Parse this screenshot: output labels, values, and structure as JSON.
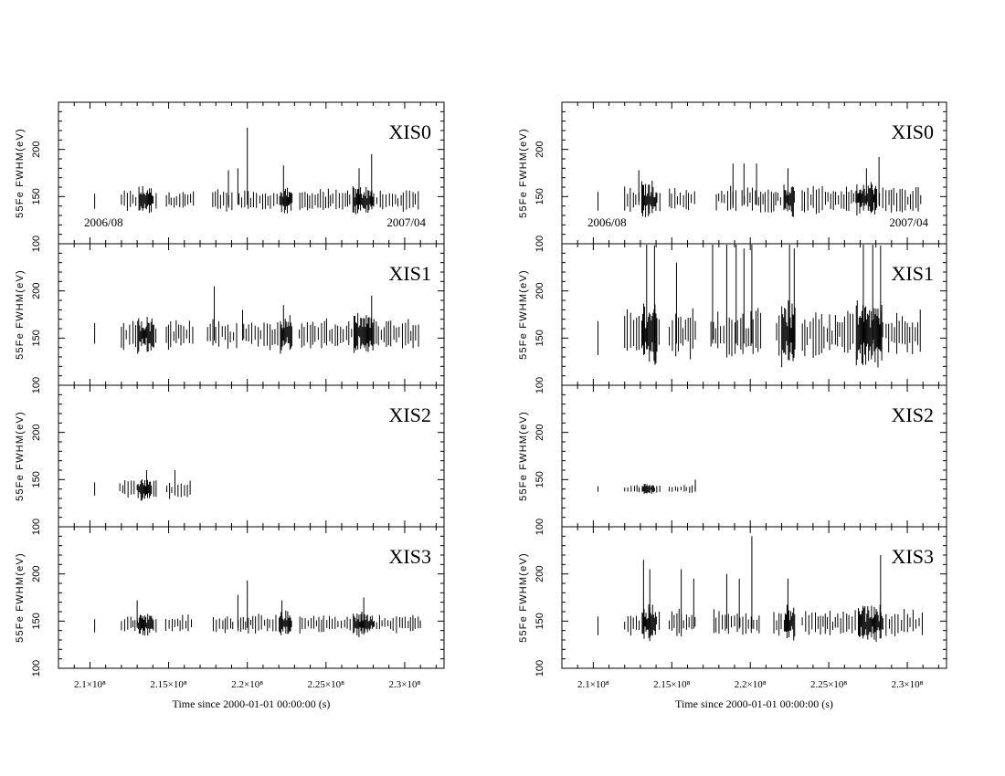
{
  "chart_data": [
    {
      "type": "scatter",
      "column": "left",
      "xlabel": "Time since 2000-01-01 00:00:00 (s)",
      "xlim": [
        208000000,
        232500000
      ],
      "x_ticks": [
        "2.1×10⁸",
        "2.15×10⁸",
        "2.2×10⁸",
        "2.25×10⁸",
        "2.3×10⁸"
      ],
      "ylabel": "55Fe FWHM(eV)",
      "ylim": [
        100,
        250
      ],
      "y_ticks": [
        100,
        150,
        200
      ],
      "date_annotations": [
        "2006/08",
        "2007/04"
      ],
      "panels": [
        {
          "label": "XIS0",
          "baseline": 146,
          "start": 212000000,
          "end": 231000000,
          "spread": 8,
          "isolated": [
            {
              "x": 210300000,
              "y": 145
            }
          ],
          "gaps": [
            [
              214300000,
              214800000
            ],
            [
              216600000,
              217800000
            ],
            [
              219100000,
              219400000
            ],
            [
              222900000,
              223300000
            ]
          ],
          "spikes": [
            {
              "x": 218800000,
              "y": 178
            },
            {
              "x": 219400000,
              "y": 180
            },
            {
              "x": 220000000,
              "y": 223
            },
            {
              "x": 222300000,
              "y": 183
            },
            {
              "x": 227100000,
              "y": 180
            },
            {
              "x": 227900000,
              "y": 195
            }
          ],
          "dense": [
            [
              213000000,
              214000000
            ],
            [
              222000000,
              222800000
            ],
            [
              226700000,
              228000000
            ]
          ]
        },
        {
          "label": "XIS1",
          "baseline": 154,
          "start": 212000000,
          "end": 231000000,
          "spread": 11,
          "isolated": [
            {
              "x": 210300000,
              "y": 155
            }
          ],
          "gaps": [
            [
              214300000,
              214800000
            ],
            [
              216600000,
              217400000
            ],
            [
              219400000,
              219700000
            ],
            [
              222900000,
              223300000
            ]
          ],
          "spikes": [
            {
              "x": 217900000,
              "y": 205
            },
            {
              "x": 219700000,
              "y": 180
            },
            {
              "x": 222300000,
              "y": 185
            },
            {
              "x": 227900000,
              "y": 195
            }
          ],
          "dense": [
            [
              213000000,
              214000000
            ],
            [
              222000000,
              222800000
            ],
            [
              226700000,
              228000000
            ]
          ]
        },
        {
          "label": "XIS2",
          "baseline": 140,
          "start": 211900000,
          "end": 216500000,
          "spread": 7,
          "isolated": [
            {
              "x": 210300000,
              "y": 140
            }
          ],
          "gaps": [
            [
              214300000,
              214800000
            ]
          ],
          "spikes": [
            {
              "x": 213600000,
              "y": 160
            },
            {
              "x": 215400000,
              "y": 160
            }
          ],
          "dense": [
            [
              213000000,
              213900000
            ]
          ]
        },
        {
          "label": "XIS3",
          "baseline": 147,
          "start": 212000000,
          "end": 231000000,
          "spread": 7,
          "isolated": [
            {
              "x": 210300000,
              "y": 145
            }
          ],
          "gaps": [
            [
              214300000,
              214800000
            ],
            [
              216600000,
              217800000
            ],
            [
              219100000,
              219400000
            ],
            [
              222900000,
              223300000
            ]
          ],
          "spikes": [
            {
              "x": 213000000,
              "y": 172
            },
            {
              "x": 219400000,
              "y": 178
            },
            {
              "x": 220000000,
              "y": 193
            },
            {
              "x": 222200000,
              "y": 172
            },
            {
              "x": 227400000,
              "y": 175
            }
          ],
          "dense": [
            [
              213000000,
              214000000
            ],
            [
              222000000,
              222800000
            ],
            [
              226700000,
              228000000
            ]
          ]
        }
      ]
    },
    {
      "type": "scatter",
      "column": "right",
      "xlabel": "Time since 2000-01-01 00:00:00 (s)",
      "xlim": [
        208000000,
        232500000
      ],
      "x_ticks": [
        "2.1×10⁸",
        "2.15×10⁸",
        "2.2×10⁸",
        "2.25×10⁸",
        "2.3×10⁸"
      ],
      "ylabel": "55Fe FWHM(eV)",
      "ylim": [
        100,
        250
      ],
      "y_ticks": [
        100,
        150,
        200
      ],
      "date_annotations": [
        "2006/08",
        "2007/04"
      ],
      "panels": [
        {
          "label": "XIS0",
          "baseline": 147,
          "start": 212000000,
          "end": 231000000,
          "spread": 10,
          "isolated": [
            {
              "x": 210300000,
              "y": 145
            }
          ],
          "gaps": [
            [
              214300000,
              214800000
            ],
            [
              216600000,
              217800000
            ],
            [
              219100000,
              219400000
            ],
            [
              222900000,
              223300000
            ]
          ],
          "spikes": [
            {
              "x": 212900000,
              "y": 178
            },
            {
              "x": 218900000,
              "y": 185
            },
            {
              "x": 219600000,
              "y": 185
            },
            {
              "x": 220400000,
              "y": 185
            },
            {
              "x": 222400000,
              "y": 180
            },
            {
              "x": 227400000,
              "y": 180
            },
            {
              "x": 228200000,
              "y": 192
            }
          ],
          "dense": [
            [
              213000000,
              214000000
            ],
            [
              222000000,
              222800000
            ],
            [
              226700000,
              228000000
            ]
          ]
        },
        {
          "label": "XIS1",
          "baseline": 155,
          "start": 212000000,
          "end": 231000000,
          "spread": 18,
          "isolated": [
            {
              "x": 210300000,
              "y": 150
            }
          ],
          "gaps": [
            [
              214300000,
              214800000
            ],
            [
              216600000,
              217400000
            ],
            [
              220700000,
              221600000
            ],
            [
              222900000,
              223300000
            ]
          ],
          "spikes": [
            {
              "x": 213400000,
              "y": 250
            },
            {
              "x": 213900000,
              "y": 248
            },
            {
              "x": 215300000,
              "y": 230
            },
            {
              "x": 217600000,
              "y": 250
            },
            {
              "x": 218500000,
              "y": 250
            },
            {
              "x": 219100000,
              "y": 250
            },
            {
              "x": 219600000,
              "y": 245
            },
            {
              "x": 220100000,
              "y": 250
            },
            {
              "x": 222500000,
              "y": 250
            },
            {
              "x": 222800000,
              "y": 245
            },
            {
              "x": 227200000,
              "y": 250
            },
            {
              "x": 227800000,
              "y": 250
            },
            {
              "x": 228300000,
              "y": 248
            }
          ],
          "dense": [
            [
              213000000,
              214000000
            ],
            [
              222000000,
              222800000
            ],
            [
              226700000,
              228400000
            ]
          ]
        },
        {
          "label": "XIS2",
          "baseline": 140,
          "start": 212000000,
          "end": 216500000,
          "spread": 3,
          "isolated": [
            {
              "x": 210300000,
              "y": 140
            }
          ],
          "gaps": [
            [
              214300000,
              214800000
            ]
          ],
          "spikes": [
            {
              "x": 216500000,
              "y": 150
            }
          ],
          "dense": [
            [
              213000000,
              213900000
            ]
          ]
        },
        {
          "label": "XIS3",
          "baseline": 148,
          "start": 212000000,
          "end": 231000000,
          "spread": 10,
          "isolated": [
            {
              "x": 210300000,
              "y": 145
            }
          ],
          "gaps": [
            [
              214300000,
              214800000
            ],
            [
              216600000,
              217600000
            ],
            [
              220700000,
              221500000
            ],
            [
              222900000,
              223300000
            ]
          ],
          "spikes": [
            {
              "x": 213200000,
              "y": 215
            },
            {
              "x": 213600000,
              "y": 205
            },
            {
              "x": 215600000,
              "y": 205
            },
            {
              "x": 216400000,
              "y": 195
            },
            {
              "x": 218500000,
              "y": 200
            },
            {
              "x": 219300000,
              "y": 195
            },
            {
              "x": 220100000,
              "y": 240
            },
            {
              "x": 222400000,
              "y": 195
            },
            {
              "x": 228300000,
              "y": 220
            }
          ],
          "dense": [
            [
              213000000,
              214000000
            ],
            [
              222000000,
              222800000
            ],
            [
              226700000,
              228400000
            ]
          ]
        }
      ]
    }
  ]
}
